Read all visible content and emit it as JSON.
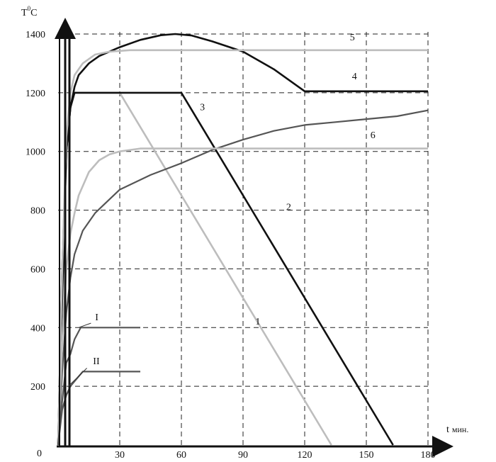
{
  "chart_data": {
    "type": "line",
    "xlabel_prefix": "t",
    "xlabel_unit": "мин.",
    "ylabel_main": "T",
    "ylabel_sup": "0",
    "ylabel_unit": "C",
    "origin_label": "0",
    "xlim": [
      0,
      180
    ],
    "ylim": [
      0,
      1400
    ],
    "x_ticks": [
      30,
      60,
      90,
      120,
      150,
      180
    ],
    "y_ticks": [
      200,
      400,
      600,
      800,
      1000,
      1200,
      1400
    ],
    "grid": true,
    "colors": {
      "dark": "#111111",
      "mid": "#555555",
      "light": "#bdbdbd",
      "grid": "#222222"
    },
    "series": [
      {
        "name": "1",
        "color": "light",
        "points": [
          [
            0,
            0
          ],
          [
            2,
            500
          ],
          [
            4,
            1000
          ],
          [
            6,
            1150
          ],
          [
            8,
            1200
          ],
          [
            30,
            1200
          ],
          [
            133,
            0
          ]
        ]
      },
      {
        "name": "2",
        "color": "dark",
        "points": [
          [
            0,
            0
          ],
          [
            2,
            500
          ],
          [
            4,
            1000
          ],
          [
            6,
            1150
          ],
          [
            8,
            1200
          ],
          [
            60,
            1200
          ],
          [
            163,
            0
          ]
        ]
      },
      {
        "name": "3",
        "color": "mid",
        "points": [
          [
            0,
            0
          ],
          [
            2,
            250
          ],
          [
            4,
            450
          ],
          [
            6,
            570
          ],
          [
            8,
            650
          ],
          [
            12,
            730
          ],
          [
            18,
            790
          ],
          [
            24,
            830
          ],
          [
            30,
            870
          ],
          [
            45,
            920
          ],
          [
            60,
            960
          ],
          [
            75,
            1005
          ],
          [
            90,
            1040
          ],
          [
            105,
            1070
          ],
          [
            120,
            1090
          ],
          [
            135,
            1100
          ],
          [
            150,
            1110
          ],
          [
            165,
            1120
          ],
          [
            180,
            1140
          ]
        ]
      },
      {
        "name": "4",
        "color": "dark",
        "points": [
          [
            0,
            0
          ],
          [
            2,
            600
          ],
          [
            4,
            1000
          ],
          [
            6,
            1150
          ],
          [
            8,
            1220
          ],
          [
            10,
            1260
          ],
          [
            15,
            1300
          ],
          [
            20,
            1325
          ],
          [
            30,
            1355
          ],
          [
            40,
            1380
          ],
          [
            50,
            1396
          ],
          [
            57,
            1400
          ],
          [
            65,
            1395
          ],
          [
            75,
            1375
          ],
          [
            90,
            1340
          ],
          [
            105,
            1280
          ],
          [
            120,
            1205
          ],
          [
            180,
            1205
          ]
        ]
      },
      {
        "name": "5",
        "color": "light",
        "points": [
          [
            0,
            0
          ],
          [
            2,
            600
          ],
          [
            4,
            1050
          ],
          [
            6,
            1200
          ],
          [
            8,
            1260
          ],
          [
            12,
            1300
          ],
          [
            18,
            1330
          ],
          [
            25,
            1340
          ],
          [
            35,
            1345
          ],
          [
            60,
            1345
          ],
          [
            90,
            1345
          ],
          [
            180,
            1345
          ]
        ]
      },
      {
        "name": "6",
        "color": "light",
        "points": [
          [
            0,
            0
          ],
          [
            2,
            350
          ],
          [
            4,
            600
          ],
          [
            6,
            720
          ],
          [
            8,
            790
          ],
          [
            10,
            850
          ],
          [
            15,
            930
          ],
          [
            20,
            970
          ],
          [
            25,
            990
          ],
          [
            30,
            1000
          ],
          [
            40,
            1010
          ],
          [
            60,
            1010
          ],
          [
            180,
            1010
          ]
        ]
      },
      {
        "name": "I",
        "color": "mid",
        "points": [
          [
            0,
            0
          ],
          [
            2,
            150
          ],
          [
            4,
            280
          ],
          [
            6,
            310
          ],
          [
            8,
            360
          ],
          [
            11,
            400
          ],
          [
            40,
            400
          ]
        ]
      },
      {
        "name": "II",
        "color": "mid",
        "points": [
          [
            0,
            0
          ],
          [
            2,
            120
          ],
          [
            4,
            170
          ],
          [
            6,
            200
          ],
          [
            12,
            250
          ],
          [
            40,
            250
          ]
        ]
      }
    ]
  }
}
